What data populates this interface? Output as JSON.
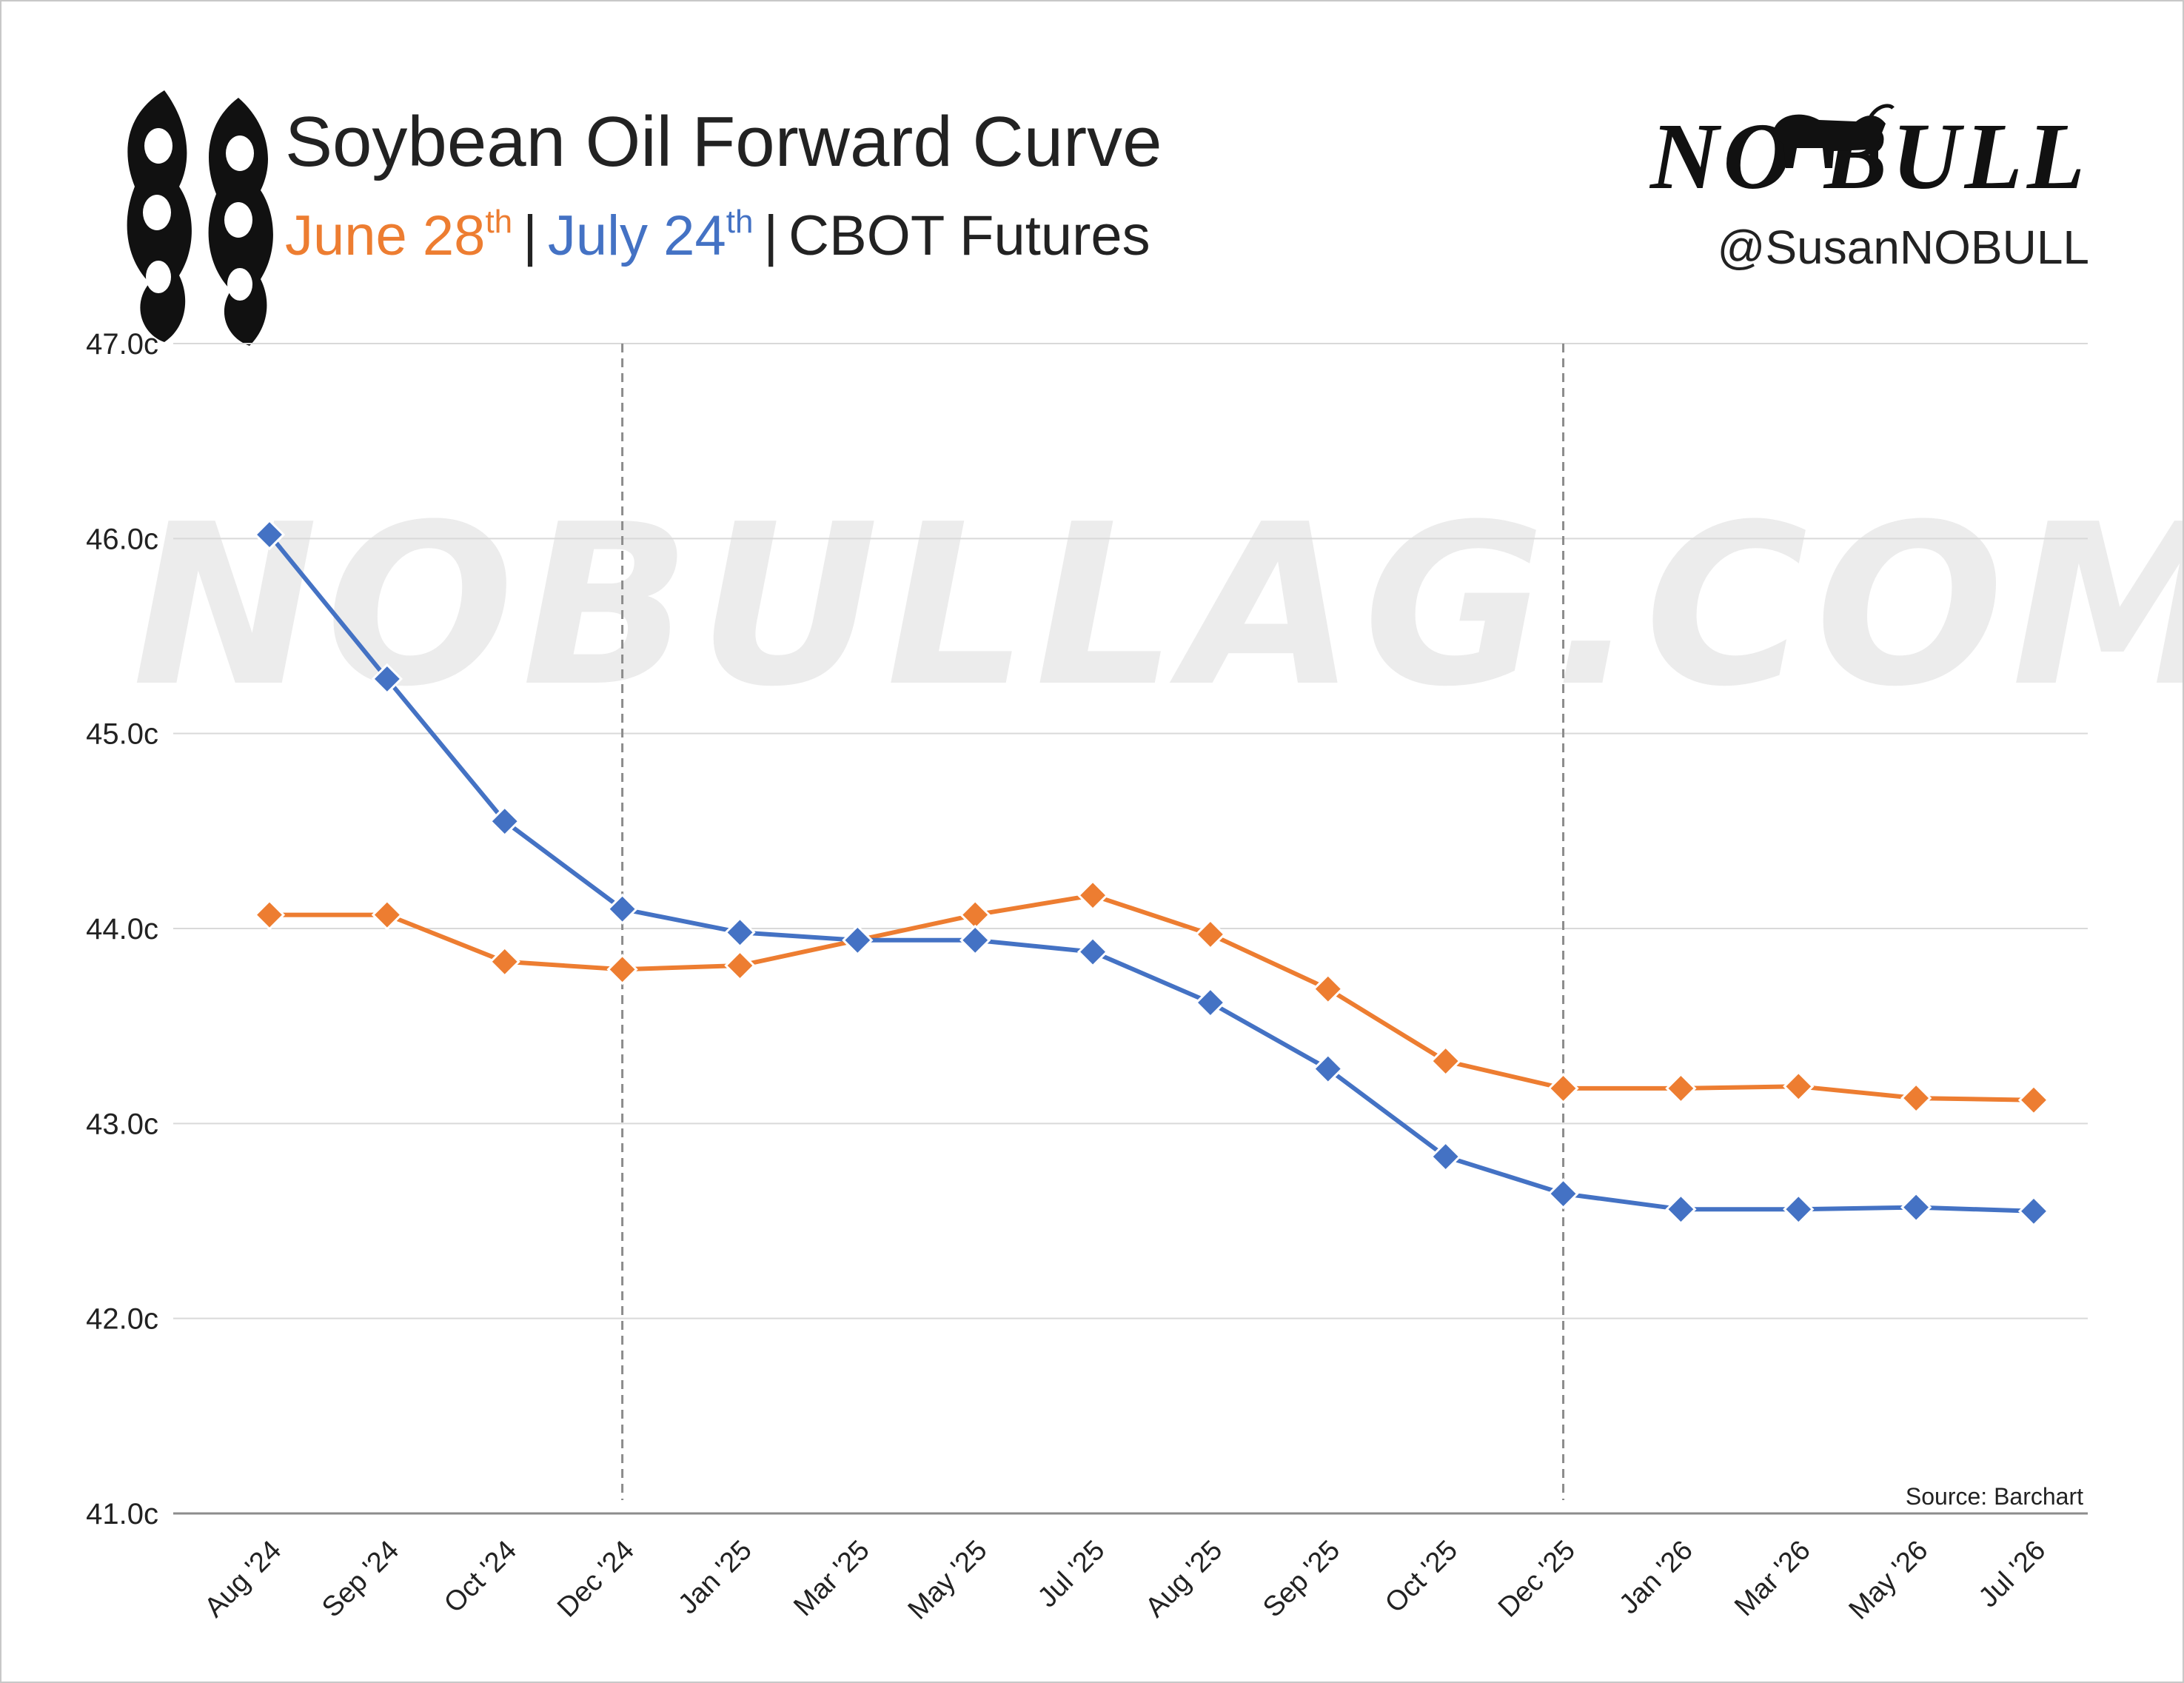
{
  "header": {
    "title": "Soybean Oil Forward Curve",
    "subtitle": {
      "date1_base": "June 28",
      "date1_sup": "th",
      "separator": "|",
      "date2_base": "July 24",
      "date2_sup": "th",
      "suffix": "CBOT Futures"
    },
    "brand_logo": "NO BULL",
    "handle": "@SusanNOBULL",
    "icon": "soybean-pod-icon"
  },
  "watermark": "NOBULLAG.COM",
  "source": "Source: Barchart",
  "colors": {
    "june": "#ED7D31",
    "july": "#4472C4",
    "grid": "#d9d9d9",
    "axis": "#8c8c8c",
    "text": "#222222"
  },
  "chart_data": {
    "type": "line",
    "categories": [
      "Aug '24",
      "Sep '24",
      "Oct '24",
      "Dec '24",
      "Jan '25",
      "Mar '25",
      "May '25",
      "Jul '25",
      "Aug '25",
      "Sep '25",
      "Oct '25",
      "Dec '25",
      "Jan '26",
      "Mar '26",
      "May '26",
      "Jul '26"
    ],
    "series": [
      {
        "name": "June 28th",
        "color": "#ED7D31",
        "values": [
          44.07,
          44.07,
          43.83,
          43.79,
          43.81,
          43.94,
          44.07,
          44.17,
          43.97,
          43.69,
          43.32,
          43.18,
          43.18,
          43.19,
          43.13,
          43.12
        ]
      },
      {
        "name": "July 24th",
        "color": "#4472C4",
        "values": [
          46.02,
          45.28,
          44.55,
          44.1,
          43.98,
          43.94,
          43.94,
          43.88,
          43.62,
          43.28,
          42.83,
          42.64,
          42.56,
          42.56,
          42.57,
          42.55
        ]
      }
    ],
    "y_ticks": [
      "41.0c",
      "42.0c",
      "43.0c",
      "44.0c",
      "45.0c",
      "46.0c",
      "47.0c"
    ],
    "ylim": [
      41.0,
      47.0
    ],
    "marker": "diamond",
    "grid": true,
    "reference_lines_at": [
      "Dec '24",
      "Dec '25"
    ],
    "xlabel": "",
    "ylabel": "",
    "legend": "in subtitle"
  }
}
